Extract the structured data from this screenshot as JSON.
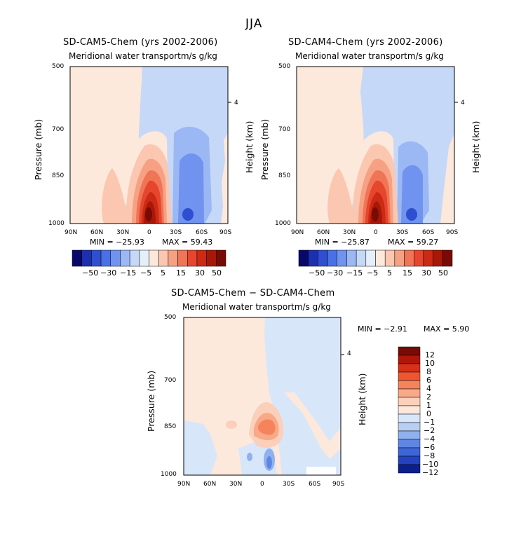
{
  "figure": {
    "title": "JJA"
  },
  "chart_data": [
    {
      "type": "heatmap",
      "title": "SD-CAM5-Chem (yrs 2002-2006)",
      "subtitle": "Meridional water transportm/s g/kg",
      "xlabel": "",
      "ylabel": "Pressure (mb)",
      "y2label": "Height (km)",
      "xticks": [
        "90N",
        "60N",
        "30N",
        "0",
        "30S",
        "60S",
        "90S"
      ],
      "yticks": [
        "500",
        "700",
        "850",
        "1000"
      ],
      "y2ticks": [
        "4"
      ],
      "min_text": "MIN = −25.93",
      "max_text": "MAX = 59.43",
      "min": -25.93,
      "max": 59.43,
      "colorbar_labels": [
        "−50",
        "−30",
        "−15",
        "−5",
        "5",
        "15",
        "30",
        "50"
      ]
    },
    {
      "type": "heatmap",
      "title": "SD-CAM4-Chem (yrs 2002-2006)",
      "subtitle": "Meridional water transportm/s g/kg",
      "xlabel": "",
      "ylabel": "Pressure (mb)",
      "y2label": "Height (km)",
      "xticks": [
        "90N",
        "60N",
        "30N",
        "0",
        "30S",
        "60S",
        "90S"
      ],
      "yticks": [
        "500",
        "700",
        "850",
        "1000"
      ],
      "y2ticks": [
        "4"
      ],
      "min_text": "MIN = −25.87",
      "max_text": "MAX = 59.27",
      "min": -25.87,
      "max": 59.27,
      "colorbar_labels": [
        "−50",
        "−30",
        "−15",
        "−5",
        "5",
        "15",
        "30",
        "50"
      ]
    },
    {
      "type": "heatmap",
      "title": "SD-CAM5-Chem − SD-CAM4-Chem",
      "subtitle": "Meridional water transportm/s g/kg",
      "xlabel": "",
      "ylabel": "Pressure (mb)",
      "y2label": "Height (km)",
      "xticks": [
        "90N",
        "60N",
        "30N",
        "0",
        "30S",
        "60S",
        "90S"
      ],
      "yticks": [
        "500",
        "700",
        "850",
        "1000"
      ],
      "y2ticks": [
        "4"
      ],
      "min_text": "MIN = −2.91",
      "max_text": "MAX = 5.90",
      "min": -2.91,
      "max": 5.9,
      "colorbar_labels": [
        "12",
        "10",
        "8",
        "6",
        "4",
        "2",
        "1",
        "0",
        "−1",
        "−2",
        "−4",
        "−6",
        "−8",
        "−10",
        "−12"
      ]
    }
  ],
  "colors": {
    "main_scale": [
      "#08086b",
      "#1c2fb0",
      "#2f4fd0",
      "#4a70e6",
      "#6f93ee",
      "#9bb8f4",
      "#c6d8f8",
      "#e6eef9",
      "#fde8dc",
      "#fbc7b0",
      "#f6a184",
      "#f07456",
      "#e5462d",
      "#cc2a14",
      "#a81808",
      "#7a0a04"
    ],
    "diff_scale": [
      "#7a0a04",
      "#b0160a",
      "#d8301a",
      "#f0552f",
      "#f5845d",
      "#f7a988",
      "#fbd0bb",
      "#fde7da",
      "#d8e6fa",
      "#b7cff4",
      "#8fb1ee",
      "#5f86e3",
      "#3d66d8",
      "#2343c0",
      "#0c1f8e"
    ]
  }
}
